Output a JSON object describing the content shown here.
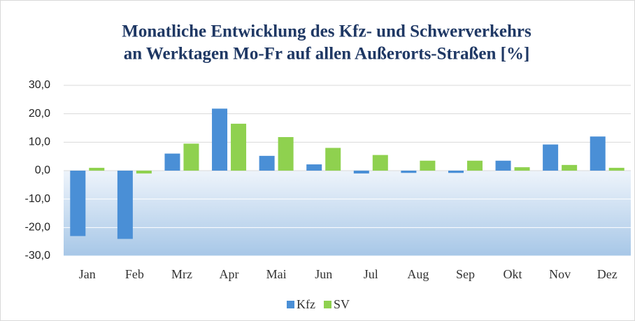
{
  "chart_data": {
    "type": "bar",
    "title": "Monatliche Entwicklung des Kfz- und Schwerverkehrs",
    "subtitle": "an Werktagen Mo-Fr auf allen Außerorts-Straßen [%]",
    "categories": [
      "Jan",
      "Feb",
      "Mrz",
      "Apr",
      "Mai",
      "Jun",
      "Jul",
      "Aug",
      "Sep",
      "Okt",
      "Nov",
      "Dez"
    ],
    "series": [
      {
        "name": "Kfz",
        "color": "#4a8fd6",
        "values": [
          -23,
          -24,
          6,
          21.8,
          5.2,
          2.2,
          -1,
          -0.8,
          -0.8,
          3.5,
          9.2,
          12
        ]
      },
      {
        "name": "SV",
        "color": "#8fd14f",
        "values": [
          1,
          -1,
          9.5,
          16.5,
          11.8,
          8,
          5.5,
          3.5,
          3.5,
          1.2,
          2,
          1
        ]
      }
    ],
    "ylim": [
      -30,
      30
    ],
    "yticks": [
      {
        "value": -30,
        "label": "-30,0"
      },
      {
        "value": -20,
        "label": "-20,0"
      },
      {
        "value": -10,
        "label": "-10,0"
      },
      {
        "value": 0,
        "label": "0,0"
      },
      {
        "value": 10,
        "label": "10,0"
      },
      {
        "value": 20,
        "label": "20,0"
      },
      {
        "value": 30,
        "label": "30,0"
      }
    ],
    "grid": true,
    "legend": "bottom"
  }
}
